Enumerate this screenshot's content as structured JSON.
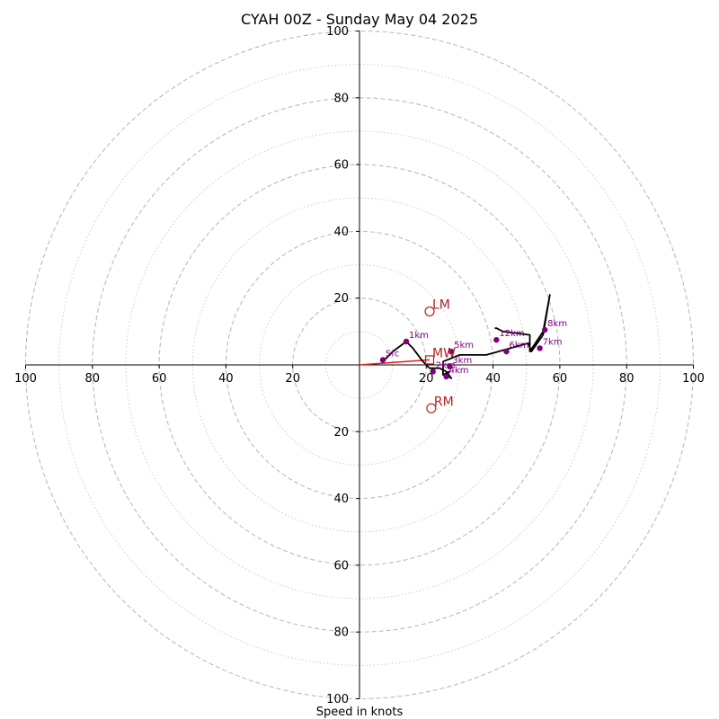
{
  "chart_data": {
    "type": "scatter",
    "subtype": "hodograph",
    "title": "CYAH 00Z - Sunday May 04 2025",
    "xlabel": "Speed in knots",
    "ylabel": "",
    "xlim": [
      -100,
      100
    ],
    "ylim": [
      -100,
      100
    ],
    "ring_major": [
      20,
      40,
      60,
      80,
      100
    ],
    "ring_minor": [
      10,
      30,
      50,
      70,
      90
    ],
    "axis_ticks": {
      "left": [
        "100",
        "80",
        "60",
        "40",
        "20"
      ],
      "right": [
        "20",
        "40",
        "60",
        "80",
        "100"
      ],
      "top": [
        "20",
        "40",
        "60",
        "80",
        "100"
      ],
      "bottom": [
        "20",
        "40",
        "60",
        "80",
        "100"
      ]
    },
    "grid": true,
    "wind_profile": {
      "u": [
        7,
        10,
        14,
        16,
        19,
        21,
        24,
        26,
        27.5,
        26,
        27,
        25,
        25,
        30,
        38,
        50.5,
        51.5,
        55,
        57,
        55,
        51,
        51,
        43,
        41,
        41,
        40.5
      ],
      "v": [
        1,
        4,
        7,
        5,
        1,
        -1,
        -1,
        -2,
        -4,
        -3,
        -2,
        -3,
        1,
        3,
        3,
        6.5,
        4,
        9,
        21,
        10,
        4,
        9,
        10,
        11,
        11,
        11
      ]
    },
    "height_markers": [
      {
        "label": "Sfc",
        "u": 7,
        "v": 1.5
      },
      {
        "label": "1km",
        "u": 14,
        "v": 7
      },
      {
        "label": "2km",
        "u": 22,
        "v": -2
      },
      {
        "label": "3km",
        "u": 27,
        "v": -0.5
      },
      {
        "label": "4km",
        "u": 26,
        "v": -3.5
      },
      {
        "label": "5km",
        "u": 27.5,
        "v": 4
      },
      {
        "label": "6km",
        "u": 44,
        "v": 4
      },
      {
        "label": "7km",
        "u": 54,
        "v": 5
      },
      {
        "label": "8km",
        "u": 55.5,
        "v": 10.5
      },
      {
        "label": "12km",
        "u": 41,
        "v": 7.5
      }
    ],
    "storm_motions": [
      {
        "label": "LM",
        "u": 21,
        "v": 16
      },
      {
        "label": "MW",
        "u": 21,
        "v": 1.5
      },
      {
        "label": "RM",
        "u": 21.5,
        "v": -13
      }
    ],
    "storm_vector": {
      "from_u": 0,
      "from_v": 0,
      "to_u": 21,
      "to_v": 1.5
    },
    "colors": {
      "profile": "#000000",
      "markers": "#800080",
      "motion": "#b22222",
      "vector": "#e8191a",
      "grid": "#bbbbbb",
      "axes": "#000000"
    }
  }
}
